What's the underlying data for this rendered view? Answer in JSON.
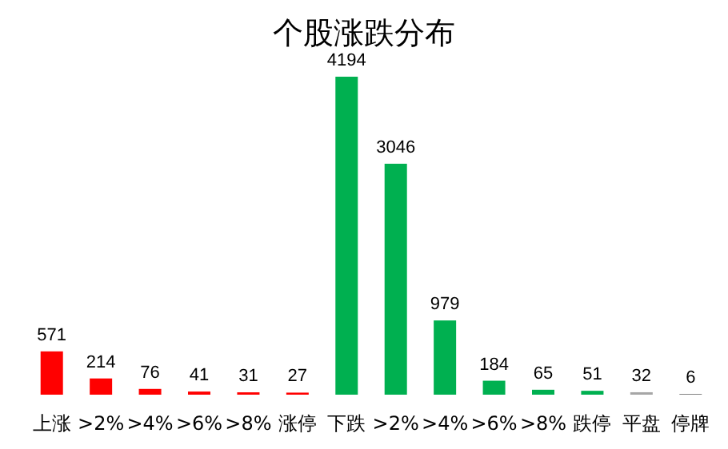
{
  "chart_data": {
    "type": "bar",
    "title": "个股涨跌分布",
    "categories": [
      "上涨",
      ">2%",
      ">4%",
      ">6%",
      ">8%",
      "涨停",
      "下跌",
      ">2%",
      ">4%",
      ">6%",
      ">8%",
      "跌停",
      "平盘",
      "停牌"
    ],
    "values": [
      571,
      214,
      76,
      41,
      31,
      27,
      4194,
      3046,
      979,
      184,
      65,
      51,
      32,
      6
    ],
    "colors": [
      "#ff0000",
      "#ff0000",
      "#ff0000",
      "#ff0000",
      "#ff0000",
      "#ff0000",
      "#00b050",
      "#00b050",
      "#00b050",
      "#00b050",
      "#00b050",
      "#00b050",
      "#a6a6a6",
      "#262626"
    ],
    "data_labels": true
  }
}
